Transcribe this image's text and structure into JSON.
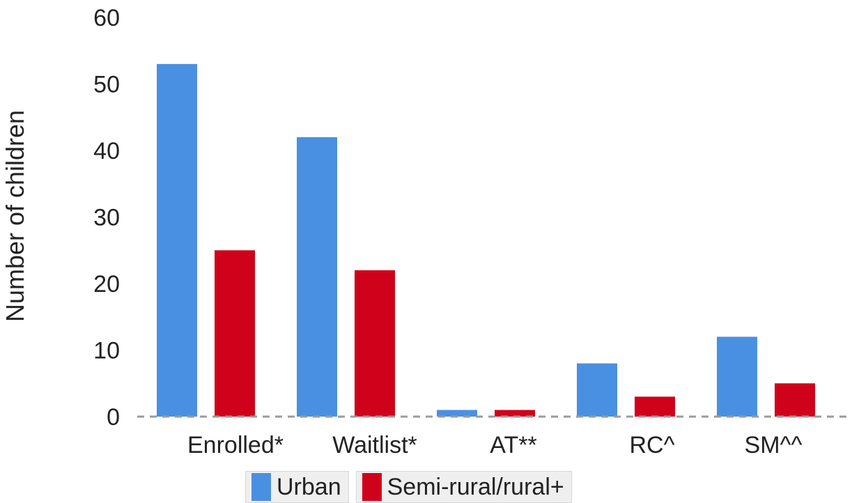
{
  "chart_data": {
    "type": "bar",
    "title": "",
    "xlabel": "",
    "ylabel": "Number of children",
    "ylim": [
      0,
      60
    ],
    "yticks": [
      0,
      10,
      20,
      30,
      40,
      50,
      60
    ],
    "categories": [
      "Enrolled*",
      "Waitlist*",
      "AT**",
      "RC^",
      "SM^^"
    ],
    "series": [
      {
        "name": "Urban",
        "color": "#4a90e2",
        "values": [
          53,
          42,
          1,
          8,
          12
        ]
      },
      {
        "name": "Semi-rural/rural+",
        "color": "#d0021b",
        "values": [
          25,
          22,
          1,
          3,
          5
        ]
      }
    ],
    "grid": false,
    "legend": "bottom"
  }
}
